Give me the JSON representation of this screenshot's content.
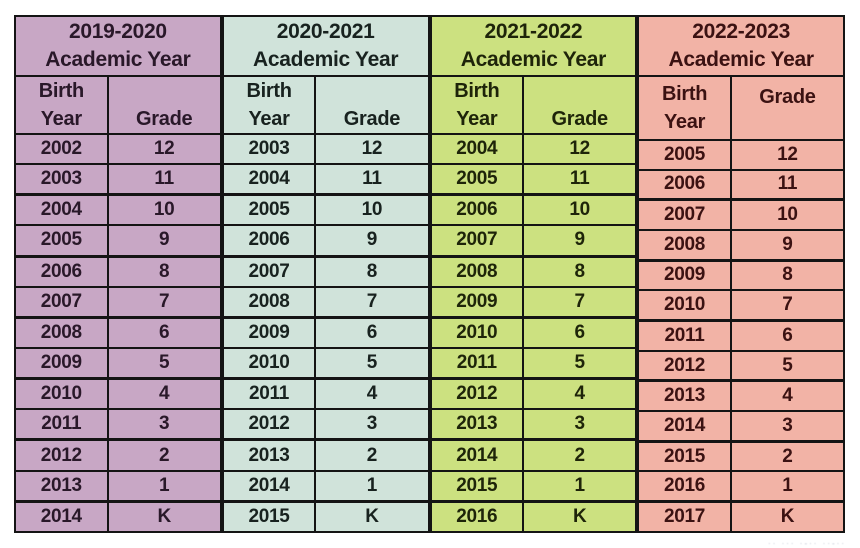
{
  "table": {
    "border_color": "#141414",
    "groups": [
      {
        "id": "2019-2020",
        "header_line1": "2019-2020",
        "header_line2": "Academic Year",
        "birth_line1": "Birth",
        "birth_line2": "Year",
        "grade_label": "Grade",
        "grade_align": "bottom",
        "bg": "#c8a7c5",
        "text": "#291829",
        "rows": [
          {
            "year": "2002",
            "grade": "12"
          },
          {
            "year": "2003",
            "grade": "11"
          },
          {
            "year": "2004",
            "grade": "10"
          },
          {
            "year": "2005",
            "grade": "9"
          },
          {
            "year": "2006",
            "grade": "8"
          },
          {
            "year": "2007",
            "grade": "7"
          },
          {
            "year": "2008",
            "grade": "6"
          },
          {
            "year": "2009",
            "grade": "5"
          },
          {
            "year": "2010",
            "grade": "4"
          },
          {
            "year": "2011",
            "grade": "3"
          },
          {
            "year": "2012",
            "grade": "2"
          },
          {
            "year": "2013",
            "grade": "1"
          },
          {
            "year": "2014",
            "grade": "K"
          }
        ]
      },
      {
        "id": "2020-2021",
        "header_line1": "2020-2021",
        "header_line2": "Academic Year",
        "birth_line1": "Birth",
        "birth_line2": "Year",
        "grade_label": "Grade",
        "grade_align": "bottom",
        "bg": "#d0e3da",
        "text": "#18221f",
        "rows": [
          {
            "year": "2003",
            "grade": "12"
          },
          {
            "year": "2004",
            "grade": "11"
          },
          {
            "year": "2005",
            "grade": "10"
          },
          {
            "year": "2006",
            "grade": "9"
          },
          {
            "year": "2007",
            "grade": "8"
          },
          {
            "year": "2008",
            "grade": "7"
          },
          {
            "year": "2009",
            "grade": "6"
          },
          {
            "year": "2010",
            "grade": "5"
          },
          {
            "year": "2011",
            "grade": "4"
          },
          {
            "year": "2012",
            "grade": "3"
          },
          {
            "year": "2013",
            "grade": "2"
          },
          {
            "year": "2014",
            "grade": "1"
          },
          {
            "year": "2015",
            "grade": "K"
          }
        ]
      },
      {
        "id": "2021-2022",
        "header_line1": "2021-2022",
        "header_line2": "Academic Year",
        "birth_line1": "Birth",
        "birth_line2": "Year",
        "grade_label": "Grade",
        "grade_align": "bottom",
        "bg": "#cce180",
        "text": "#1e2409",
        "rows": [
          {
            "year": "2004",
            "grade": "12"
          },
          {
            "year": "2005",
            "grade": "11"
          },
          {
            "year": "2006",
            "grade": "10"
          },
          {
            "year": "2007",
            "grade": "9"
          },
          {
            "year": "2008",
            "grade": "8"
          },
          {
            "year": "2009",
            "grade": "7"
          },
          {
            "year": "2010",
            "grade": "6"
          },
          {
            "year": "2011",
            "grade": "5"
          },
          {
            "year": "2012",
            "grade": "4"
          },
          {
            "year": "2013",
            "grade": "3"
          },
          {
            "year": "2014",
            "grade": "2"
          },
          {
            "year": "2015",
            "grade": "1"
          },
          {
            "year": "2016",
            "grade": "K"
          }
        ]
      },
      {
        "id": "2022-2023",
        "header_line1": "2022-2023",
        "header_line2": "Academic Year",
        "birth_line1": "Birth",
        "birth_line2": "Year",
        "grade_label": "Grade",
        "grade_align": "top",
        "bg": "#f2b3a6",
        "text": "#3b1212",
        "rows": [
          {
            "year": "2005",
            "grade": "12"
          },
          {
            "year": "2006",
            "grade": "11"
          },
          {
            "year": "2007",
            "grade": "10"
          },
          {
            "year": "2008",
            "grade": "9"
          },
          {
            "year": "2009",
            "grade": "8"
          },
          {
            "year": "2010",
            "grade": "7"
          },
          {
            "year": "2011",
            "grade": "6"
          },
          {
            "year": "2012",
            "grade": "5"
          },
          {
            "year": "2013",
            "grade": "4"
          },
          {
            "year": "2014",
            "grade": "3"
          },
          {
            "year": "2015",
            "grade": "2"
          },
          {
            "year": "2016",
            "grade": "1"
          },
          {
            "year": "2017",
            "grade": "K"
          }
        ]
      }
    ]
  },
  "watermark": "·· ··· ·-·· ··-··"
}
